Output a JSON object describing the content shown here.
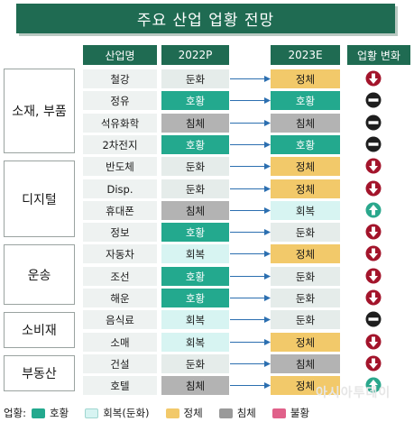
{
  "title": "주요 산업 업황 전망",
  "headers": {
    "industry": "산업명",
    "p2022": "2022P",
    "e2023": "2023E",
    "change": "업황 변화"
  },
  "groups": [
    {
      "label": "소재, 부품"
    },
    {
      "label": "디지털"
    },
    {
      "label": "운송"
    },
    {
      "label": "소비재"
    },
    {
      "label": "부동산"
    }
  ],
  "chart_data": {
    "type": "table",
    "columns": [
      "산업명",
      "2022P",
      "2023E",
      "업황 변화"
    ],
    "rows": [
      {
        "group": "소재, 부품",
        "industry": "철강",
        "p2022": "둔화",
        "e2023": "정체",
        "change": "down"
      },
      {
        "group": "소재, 부품",
        "industry": "정유",
        "p2022": "호황",
        "e2023": "호황",
        "change": "same"
      },
      {
        "group": "소재, 부품",
        "industry": "석유화학",
        "p2022": "침체",
        "e2023": "침체",
        "change": "same"
      },
      {
        "group": "소재, 부품",
        "industry": "2차전지",
        "p2022": "호황",
        "e2023": "호황",
        "change": "same"
      },
      {
        "group": "디지털",
        "industry": "반도체",
        "p2022": "둔화",
        "e2023": "정체",
        "change": "down"
      },
      {
        "group": "디지털",
        "industry": "Disp.",
        "p2022": "둔화",
        "e2023": "정체",
        "change": "down"
      },
      {
        "group": "디지털",
        "industry": "휴대폰",
        "p2022": "침체",
        "e2023": "회복",
        "change": "up"
      },
      {
        "group": "디지털",
        "industry": "정보",
        "p2022": "호황",
        "e2023": "둔화",
        "change": "down"
      },
      {
        "group": "운송",
        "industry": "자동차",
        "p2022": "회복",
        "e2023": "정체",
        "change": "down"
      },
      {
        "group": "운송",
        "industry": "조선",
        "p2022": "호황",
        "e2023": "둔화",
        "change": "down"
      },
      {
        "group": "운송",
        "industry": "해운",
        "p2022": "호황",
        "e2023": "둔화",
        "change": "down"
      },
      {
        "group": "소비재",
        "industry": "음식료",
        "p2022": "회복",
        "e2023": "둔화",
        "change": "same"
      },
      {
        "group": "소비재",
        "industry": "소매",
        "p2022": "회복",
        "e2023": "정체",
        "change": "down"
      },
      {
        "group": "부동산",
        "industry": "건설",
        "p2022": "둔화",
        "e2023": "침체",
        "change": "down"
      },
      {
        "group": "부동산",
        "industry": "호텔",
        "p2022": "침체",
        "e2023": "정체",
        "change": "up"
      }
    ],
    "legend": [
      {
        "label": "호황",
        "color": "#23a98e"
      },
      {
        "label": "회복(둔화)",
        "color": "#d7f4f2"
      },
      {
        "label": "정체",
        "color": "#f2c96a"
      },
      {
        "label": "침체",
        "color": "#9a9a9a"
      },
      {
        "label": "불황",
        "color": "#e0618a"
      }
    ]
  },
  "legend_prefix": "업황:",
  "icon_names": {
    "down": "down-arrow-icon",
    "up": "up-arrow-icon",
    "same": "no-change-icon"
  },
  "colors": {
    "down": "#a3142b",
    "up": "#2aa78c",
    "same": "#1e1e1e",
    "arrow": "#2c6fb0"
  },
  "watermark": "아시아투데이"
}
